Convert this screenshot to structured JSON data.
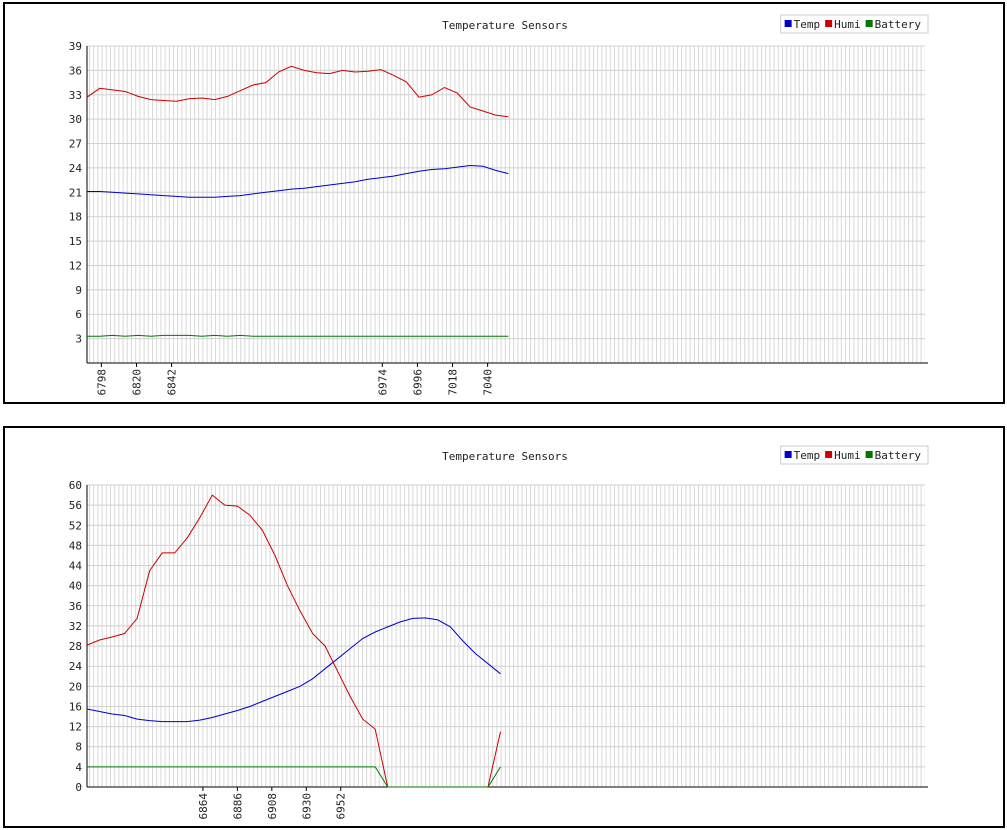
{
  "chart_data": [
    {
      "type": "line",
      "title": "Temperature Sensors",
      "legend": "top-right",
      "grid": true,
      "x": [
        6789,
        6797,
        6805,
        6813,
        6821,
        6829,
        6837,
        6845,
        6853,
        6861,
        6869,
        6877,
        6885,
        6893,
        6901,
        6909,
        6917,
        6925,
        6933,
        6941,
        6949,
        6957,
        6965,
        6973,
        6981,
        6989,
        6997,
        7005,
        7013,
        7021,
        7029,
        7037,
        7045,
        7053
      ],
      "xlim": [
        6789,
        7314
      ],
      "xticks": [
        6798,
        6820,
        6842,
        6974,
        6996,
        7018,
        7040
      ],
      "ylim": [
        0,
        39
      ],
      "yticks": [
        3,
        6,
        9,
        12,
        15,
        18,
        21,
        24,
        27,
        30,
        33,
        36,
        39
      ],
      "series": [
        {
          "name": "Temp",
          "color": "#0000cc",
          "values": [
            21.1,
            21.1,
            21.0,
            20.9,
            20.8,
            20.7,
            20.6,
            20.5,
            20.4,
            20.4,
            20.4,
            20.5,
            20.6,
            20.8,
            21.0,
            21.2,
            21.4,
            21.5,
            21.7,
            21.9,
            22.1,
            22.3,
            22.6,
            22.8,
            23.0,
            23.3,
            23.6,
            23.8,
            23.9,
            24.1,
            24.3,
            24.2,
            23.7,
            23.3
          ]
        },
        {
          "name": "Humi",
          "color": "#cc0000",
          "values": [
            32.7,
            33.8,
            33.6,
            33.4,
            32.8,
            32.4,
            32.3,
            32.2,
            32.5,
            32.6,
            32.4,
            32.8,
            33.5,
            34.2,
            34.5,
            35.8,
            36.5,
            36.0,
            35.7,
            35.6,
            36.0,
            35.8,
            35.9,
            36.1,
            35.4,
            34.6,
            32.7,
            33.0,
            33.9,
            33.2,
            31.5,
            31.0,
            30.5,
            30.3
          ]
        },
        {
          "name": "Battery",
          "color": "#007700",
          "values": [
            3.3,
            3.3,
            3.4,
            3.3,
            3.4,
            3.3,
            3.4,
            3.4,
            3.4,
            3.3,
            3.4,
            3.3,
            3.4,
            3.3,
            3.3,
            3.3,
            3.3,
            3.3,
            3.3,
            3.3,
            3.3,
            3.3,
            3.3,
            3.3,
            3.3,
            3.3,
            3.3,
            3.3,
            3.3,
            3.3,
            3.3,
            3.3,
            3.3,
            3.3
          ]
        }
      ]
    },
    {
      "type": "line",
      "title": "Temperature Sensors",
      "legend": "top-right",
      "grid": true,
      "x": [
        6790,
        6798,
        6806,
        6814,
        6822,
        6830,
        6838,
        6846,
        6854,
        6862,
        6870,
        6878,
        6886,
        6894,
        6902,
        6910,
        6918,
        6926,
        6934,
        6942,
        6950,
        6958,
        6966,
        6974,
        6982,
        6990,
        6998,
        7006,
        7014,
        7022,
        7030,
        7038,
        7046,
        7054
      ],
      "xlim": [
        6790,
        7325
      ],
      "xticks": [
        6864,
        6886,
        6908,
        6930,
        6952
      ],
      "ylim": [
        0,
        60
      ],
      "yticks": [
        0,
        4,
        8,
        12,
        16,
        20,
        24,
        28,
        32,
        36,
        40,
        44,
        48,
        52,
        56,
        60
      ],
      "series": [
        {
          "name": "Temp",
          "color": "#0000cc",
          "values": [
            15.5,
            15,
            14.5,
            14.2,
            13.5,
            13.2,
            13,
            13,
            13,
            13.3,
            13.8,
            14.5,
            15.2,
            16,
            17,
            18,
            19,
            20,
            21.5,
            23.5,
            25.5,
            27.5,
            29.5,
            30.8,
            31.8,
            32.8,
            33.5,
            33.6,
            33.2,
            31.8,
            29,
            26.5,
            24.5,
            22.5
          ]
        },
        {
          "name": "Humi",
          "color": "#cc0000",
          "values": [
            28.2,
            29.2,
            29.8,
            30.5,
            33.5,
            43,
            46.5,
            46.5,
            49.5,
            53.5,
            58,
            56,
            55.8,
            54,
            51,
            46,
            40,
            35,
            30.5,
            28,
            23,
            18,
            13.5,
            11.5,
            0,
            0,
            0,
            0,
            0,
            0,
            0,
            0,
            0,
            11
          ]
        },
        {
          "name": "Battery",
          "color": "#007700",
          "values": [
            4,
            4,
            4,
            4,
            4,
            4,
            4,
            4,
            4,
            4,
            4,
            4,
            4,
            4,
            4,
            4,
            4,
            4,
            4,
            4,
            4,
            4,
            4,
            4,
            0,
            0,
            0,
            0,
            0,
            0,
            0,
            0,
            0,
            4
          ]
        }
      ]
    }
  ]
}
